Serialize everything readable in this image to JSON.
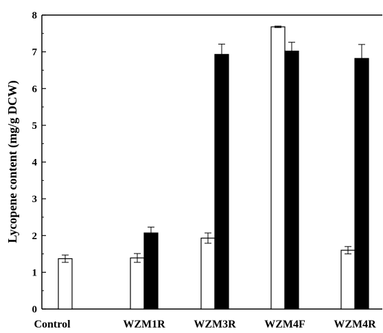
{
  "chart_data": {
    "type": "bar",
    "categories": [
      "Control",
      "WZM1R",
      "WZM3R",
      "WZM4F",
      "WZM4R"
    ],
    "series": [
      {
        "values": [
          1.37,
          1.39,
          1.93,
          7.68,
          1.6
        ],
        "errors": [
          0.1,
          0.12,
          0.14,
          0.02,
          0.1
        ],
        "fill": "#ffffff",
        "stroke": "#000000"
      },
      {
        "values": [
          null,
          2.07,
          6.93,
          7.02,
          6.82
        ],
        "errors": [
          null,
          0.16,
          0.28,
          0.24,
          0.38
        ],
        "fill": "#000000",
        "stroke": "#000000"
      }
    ],
    "title": "",
    "xlabel": "",
    "ylabel": "Lycopene content (mg/g DCW)",
    "ylim": [
      0,
      8
    ],
    "yticks": [
      "0",
      "1",
      "2",
      "3",
      "4",
      "5",
      "6",
      "7",
      "8"
    ],
    "grid": false,
    "legend": "none"
  }
}
